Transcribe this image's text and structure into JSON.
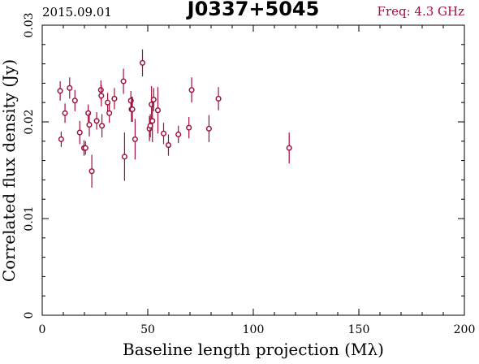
{
  "header": {
    "date": "2015.09.01",
    "source": "J0337+5045",
    "freq": "Freq: 4.3 GHz"
  },
  "colors": {
    "point": "#a0103a",
    "freq_text": "#a0103a",
    "axis": "#000000"
  },
  "chart_data": {
    "type": "scatter",
    "title": "J0337+5045",
    "xlabel": "Baseline length projection (Mλ)",
    "ylabel": "Correlated flux density (Jy)",
    "xlim": [
      0,
      200
    ],
    "ylim": [
      0,
      0.03
    ],
    "xticks": [
      0,
      50,
      100,
      150,
      200
    ],
    "xtick_labels": [
      "0",
      "50",
      "100",
      "150",
      "200"
    ],
    "yticks": [
      0,
      0.01,
      0.02,
      0.03
    ],
    "ytick_labels": [
      "0",
      "0.01",
      "0.02",
      "0.03"
    ],
    "grid": false,
    "series": [
      {
        "points": [
          {
            "x": 8.5,
            "y": 0.0232,
            "err": 0.001
          },
          {
            "x": 9.0,
            "y": 0.0182,
            "err": 0.0008
          },
          {
            "x": 10.8,
            "y": 0.0209,
            "err": 0.001
          },
          {
            "x": 13.0,
            "y": 0.0235,
            "err": 0.0011
          },
          {
            "x": 15.5,
            "y": 0.0222,
            "err": 0.0011
          },
          {
            "x": 17.8,
            "y": 0.0189,
            "err": 0.0012
          },
          {
            "x": 19.8,
            "y": 0.0173,
            "err": 0.0008
          },
          {
            "x": 20.5,
            "y": 0.0173,
            "err": 0.0007
          },
          {
            "x": 21.8,
            "y": 0.0209,
            "err": 0.0009
          },
          {
            "x": 22.3,
            "y": 0.0197,
            "err": 0.0012
          },
          {
            "x": 23.5,
            "y": 0.0149,
            "err": 0.0017
          },
          {
            "x": 25.8,
            "y": 0.0201,
            "err": 0.0009
          },
          {
            "x": 27.8,
            "y": 0.0233,
            "err": 0.001
          },
          {
            "x": 28.0,
            "y": 0.0227,
            "err": 0.0011
          },
          {
            "x": 28.3,
            "y": 0.0196,
            "err": 0.0012
          },
          {
            "x": 31.0,
            "y": 0.022,
            "err": 0.001
          },
          {
            "x": 31.8,
            "y": 0.0209,
            "err": 0.001
          },
          {
            "x": 34.2,
            "y": 0.0224,
            "err": 0.0011
          },
          {
            "x": 38.5,
            "y": 0.0242,
            "err": 0.0013
          },
          {
            "x": 39.0,
            "y": 0.0164,
            "err": 0.0025
          },
          {
            "x": 42.0,
            "y": 0.0222,
            "err": 0.001
          },
          {
            "x": 42.3,
            "y": 0.0213,
            "err": 0.0013
          },
          {
            "x": 42.7,
            "y": 0.0213,
            "err": 0.0013
          },
          {
            "x": 44.0,
            "y": 0.0182,
            "err": 0.0021
          },
          {
            "x": 47.5,
            "y": 0.0261,
            "err": 0.0014
          },
          {
            "x": 50.8,
            "y": 0.0193,
            "err": 0.0013
          },
          {
            "x": 51.2,
            "y": 0.0196,
            "err": 0.0012
          },
          {
            "x": 51.8,
            "y": 0.0218,
            "err": 0.0019
          },
          {
            "x": 52.2,
            "y": 0.0201,
            "err": 0.0022
          },
          {
            "x": 52.8,
            "y": 0.0223,
            "err": 0.0012
          },
          {
            "x": 54.8,
            "y": 0.0212,
            "err": 0.0024
          },
          {
            "x": 57.5,
            "y": 0.0188,
            "err": 0.0011
          },
          {
            "x": 59.8,
            "y": 0.0176,
            "err": 0.0011
          },
          {
            "x": 64.5,
            "y": 0.0187,
            "err": 0.0009
          },
          {
            "x": 69.5,
            "y": 0.0194,
            "err": 0.0011
          },
          {
            "x": 70.8,
            "y": 0.0233,
            "err": 0.0013
          },
          {
            "x": 83.5,
            "y": 0.0224,
            "err": 0.0012
          },
          {
            "x": 79.0,
            "y": 0.0193,
            "err": 0.0014
          },
          {
            "x": 117.0,
            "y": 0.0173,
            "err": 0.0016
          }
        ]
      }
    ]
  }
}
